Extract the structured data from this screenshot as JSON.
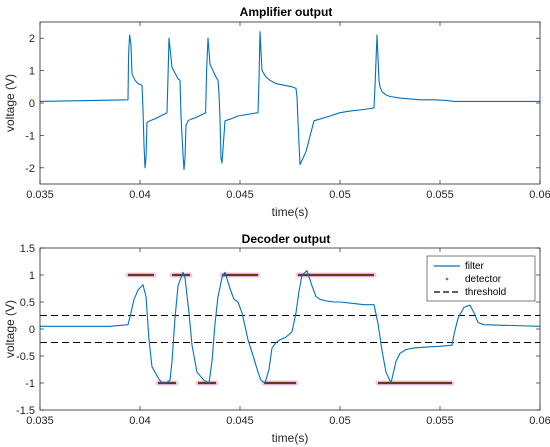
{
  "chart_data": [
    {
      "type": "line",
      "title": "Amplifier output",
      "xlabel": "time(s)",
      "ylabel": "voltage (V)",
      "xlim": [
        0.035,
        0.06
      ],
      "ylim": [
        -2.5,
        2.5
      ],
      "xticks": [
        "0.035",
        "0.04",
        "0.045",
        "0.05",
        "0.055",
        "0.06"
      ],
      "xtick_values": [
        0.035,
        0.04,
        0.045,
        0.05,
        0.055,
        0.06
      ],
      "yticks": [
        "-2",
        "-1",
        "0",
        "1",
        "2"
      ],
      "ytick_values": [
        -2,
        -1,
        0,
        1,
        2
      ],
      "color": "#0072BD",
      "series": [
        {
          "x": [
            0.035,
            0.0394,
            0.03943,
            0.03948,
            0.03955,
            0.0396,
            0.03975,
            0.0399,
            0.0401,
            0.04015,
            0.0402,
            0.04025,
            0.0403,
            0.04035,
            0.0405,
            0.0407,
            0.04135,
            0.0414,
            0.04145,
            0.0416,
            0.0419,
            0.042,
            0.04205,
            0.04215,
            0.0422,
            0.04225,
            0.0423,
            0.0424,
            0.04255,
            0.0428,
            0.04328,
            0.04333,
            0.0434,
            0.0435,
            0.0438,
            0.0439,
            0.04395,
            0.044,
            0.04405,
            0.0441,
            0.04425,
            0.0445,
            0.0447,
            0.0449,
            0.0459,
            0.04595,
            0.046,
            0.0461,
            0.0463,
            0.0465,
            0.0468,
            0.0472,
            0.0476,
            0.0478,
            0.04785,
            0.0479,
            0.048,
            0.0483,
            0.0487,
            0.0495,
            0.05,
            0.0505,
            0.0512,
            0.0517,
            0.05175,
            0.05185,
            0.0519,
            0.05195,
            0.052,
            0.0521,
            0.0523,
            0.0525,
            0.053,
            0.054,
            0.0547,
            0.0553,
            0.0556,
            0.05565,
            0.0557,
            0.05575,
            0.0558,
            0.056,
            0.0565,
            0.057,
            0.06
          ],
          "y": [
            0.05,
            0.1,
            1.5,
            2.1,
            1.8,
            0.9,
            0.7,
            0.6,
            0.55,
            -0.2,
            -1.3,
            -2.0,
            -1.7,
            -0.6,
            -0.55,
            -0.5,
            -0.3,
            0.8,
            2.0,
            1.1,
            0.75,
            0.7,
            -0.4,
            -1.6,
            -2.05,
            -1.7,
            -0.7,
            -0.55,
            -0.5,
            -0.45,
            -0.3,
            1.0,
            2.0,
            1.2,
            0.8,
            0.7,
            0.3,
            -0.5,
            -1.7,
            -1.85,
            -0.55,
            -0.5,
            -0.45,
            -0.4,
            -0.3,
            0.7,
            2.2,
            1.0,
            0.8,
            0.7,
            0.6,
            0.55,
            0.5,
            0.45,
            0.2,
            -0.6,
            -1.9,
            -1.5,
            -0.55,
            -0.4,
            -0.3,
            -0.25,
            -0.2,
            -0.15,
            0.5,
            2.1,
            1.4,
            0.7,
            0.5,
            0.35,
            0.25,
            0.2,
            0.15,
            0.1,
            0.1,
            0.08,
            0.06,
            0.05,
            0.05,
            0.05,
            0.05,
            0.05,
            0.05,
            0.05,
            0.05
          ]
        }
      ]
    },
    {
      "type": "line",
      "title": "Decoder output",
      "xlabel": "time(s)",
      "ylabel": "voltage (V)",
      "xlim": [
        0.035,
        0.06
      ],
      "ylim": [
        -1.5,
        1.5
      ],
      "xticks": [
        "0.035",
        "0.04",
        "0.045",
        "0.05",
        "0.055",
        "0.06"
      ],
      "xtick_values": [
        0.035,
        0.04,
        0.045,
        0.05,
        0.055,
        0.06
      ],
      "yticks": [
        "-1.5",
        "-1",
        "-0.5",
        "0",
        "0.5",
        "1",
        "1.5"
      ],
      "ytick_values": [
        -1.5,
        -1,
        -0.5,
        0,
        0.5,
        1,
        1.5
      ],
      "legend": "top-right",
      "series": [
        {
          "name": "filter",
          "color": "#0072BD",
          "x": [
            0.035,
            0.0385,
            0.0394,
            0.03955,
            0.0397,
            0.0399,
            0.04015,
            0.0403,
            0.04045,
            0.0406,
            0.0409,
            0.0411,
            0.0413,
            0.0415,
            0.0416,
            0.04175,
            0.0419,
            0.04215,
            0.04225,
            0.04245,
            0.0426,
            0.04285,
            0.0432,
            0.04345,
            0.0436,
            0.04375,
            0.0439,
            0.0441,
            0.04425,
            0.0445,
            0.0447,
            0.0449,
            0.0451,
            0.0454,
            0.0457,
            0.0459,
            0.04605,
            0.04625,
            0.04645,
            0.0466,
            0.0468,
            0.047,
            0.0473,
            0.0476,
            0.0478,
            0.04795,
            0.0481,
            0.04835,
            0.0486,
            0.0488,
            0.049,
            0.0493,
            0.0497,
            0.05,
            0.0505,
            0.0512,
            0.0517,
            0.0519,
            0.0521,
            0.0523,
            0.05255,
            0.0528,
            0.053,
            0.0533,
            0.0537,
            0.0545,
            0.055,
            0.0556,
            0.0557,
            0.0559,
            0.0562,
            0.0565,
            0.0567,
            0.0569,
            0.0572,
            0.06
          ],
          "y": [
            0.05,
            0.05,
            0.08,
            0.3,
            0.55,
            0.72,
            0.82,
            0.6,
            -0.2,
            -0.7,
            -0.9,
            -1.0,
            -1.0,
            -0.95,
            -0.6,
            0.2,
            0.8,
            1.05,
            0.95,
            0.3,
            -0.3,
            -0.8,
            -0.95,
            -1.0,
            -0.6,
            0.1,
            0.6,
            0.95,
            1.05,
            0.75,
            0.55,
            0.5,
            0.3,
            -0.2,
            -0.55,
            -0.8,
            -0.95,
            -1.0,
            -0.75,
            -0.35,
            -0.25,
            -0.2,
            -0.15,
            -0.05,
            0.3,
            0.7,
            1.0,
            1.08,
            0.8,
            0.6,
            0.55,
            0.52,
            0.5,
            0.5,
            0.48,
            0.45,
            0.45,
            0.1,
            -0.4,
            -0.8,
            -1.0,
            -0.6,
            -0.45,
            -0.38,
            -0.35,
            -0.33,
            -0.32,
            -0.3,
            -0.1,
            0.2,
            0.4,
            0.44,
            0.3,
            0.12,
            0.08,
            0.05
          ]
        },
        {
          "name": "detector",
          "color": "#D95319",
          "segments": [
            {
              "x0": 0.0394,
              "x1": 0.0407,
              "y": 1
            },
            {
              "x0": 0.0416,
              "x1": 0.0425,
              "y": 1
            },
            {
              "x0": 0.0441,
              "x1": 0.0459,
              "y": 1
            },
            {
              "x0": 0.0479,
              "x1": 0.0517,
              "y": 1
            },
            {
              "x0": 0.0409,
              "x1": 0.0418,
              "y": -1
            },
            {
              "x0": 0.0429,
              "x1": 0.0438,
              "y": -1
            },
            {
              "x0": 0.0462,
              "x1": 0.0478,
              "y": -1
            },
            {
              "x0": 0.0519,
              "x1": 0.0556,
              "y": -1
            }
          ]
        },
        {
          "name": "threshold",
          "color": "#000000",
          "values": [
            0.25,
            -0.25
          ]
        }
      ]
    }
  ]
}
